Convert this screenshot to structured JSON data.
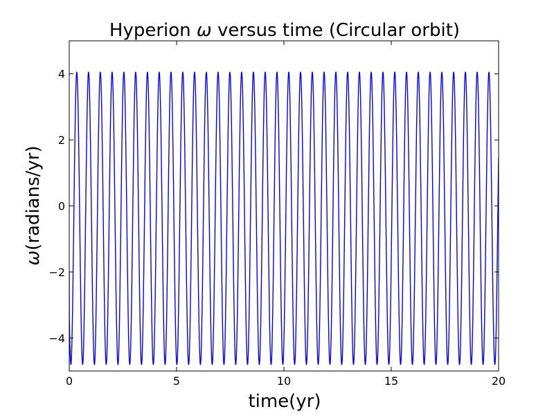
{
  "chart_data": {
    "type": "line",
    "title_prefix": "Hyperion ",
    "title_symbol": "ω",
    "title_suffix": " versus time (Circular orbit)",
    "xlabel": "time(yr)",
    "ylabel_symbol": "ω",
    "ylabel_text": "(radians/yr)",
    "xlim": [
      0,
      20
    ],
    "ylim": [
      -5,
      5
    ],
    "xticks": [
      0,
      5,
      10,
      15,
      20
    ],
    "yticks": [
      -4,
      -2,
      0,
      2,
      4
    ],
    "grid": false,
    "series": [
      {
        "color": "#0000ff",
        "function": "oscillation",
        "start_value": -2.0,
        "min": -4.8,
        "max": 4.05,
        "period_yr": 0.5486,
        "first_peak_time_yr": 0.35,
        "x_start": 0,
        "x_end": 20
      }
    ]
  }
}
